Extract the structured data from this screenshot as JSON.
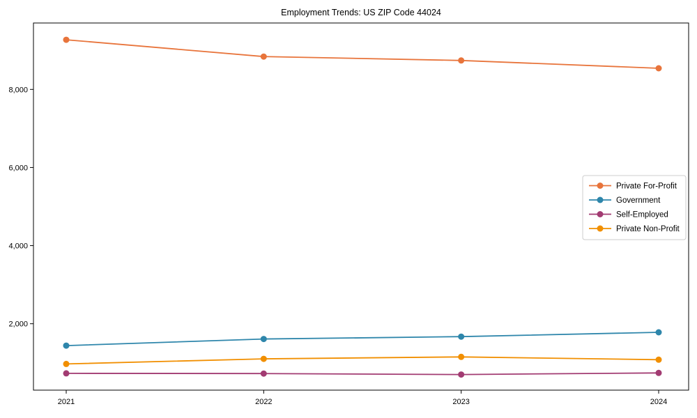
{
  "figure": {
    "title": "Employment Trends: US ZIP Code 44024"
  },
  "chart_data": {
    "type": "line",
    "title": "Employment Trends: US ZIP Code 44024",
    "x": [
      2021,
      2022,
      2023,
      2024
    ],
    "x_tick_labels": [
      "2021",
      "2022",
      "2023",
      "2024"
    ],
    "y_ticks": [
      2000,
      4000,
      6000,
      8000
    ],
    "y_tick_labels": [
      "2,000",
      "4,000",
      "6,000",
      "8,000"
    ],
    "ylim": [
      300,
      9700
    ],
    "grid": false,
    "legend_position": "right-center-inside",
    "marker": "circle",
    "series": [
      {
        "name": "Private For-Profit",
        "color": "#E8743B",
        "values": [
          9270,
          8840,
          8740,
          8540
        ]
      },
      {
        "name": "Government",
        "color": "#2E86AB",
        "values": [
          1440,
          1610,
          1670,
          1780
        ]
      },
      {
        "name": "Self-Employed",
        "color": "#A23B72",
        "values": [
          730,
          725,
          700,
          740
        ]
      },
      {
        "name": "Private Non-Profit",
        "color": "#F18F01",
        "values": [
          970,
          1100,
          1150,
          1080
        ]
      }
    ]
  }
}
